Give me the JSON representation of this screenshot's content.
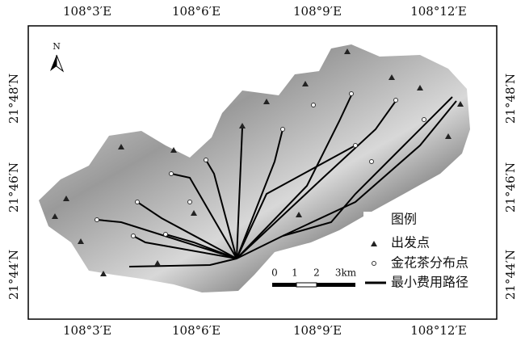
{
  "map": {
    "top_labels": [
      "108°3′E",
      "108°6′E",
      "108°9′E",
      "108°12′E"
    ],
    "bottom_labels": [
      "108°3′E",
      "108°6′E",
      "108°9′E",
      "108°12′E"
    ],
    "left_labels": [
      "21°48′N",
      "21°46′N",
      "21°44′N"
    ],
    "right_labels": [
      "21°48′N",
      "21°46′N",
      "21°44′N"
    ],
    "north": "N",
    "scale_labels": [
      "0",
      "1",
      "2",
      "3km"
    ],
    "legend": {
      "title": "图例",
      "items": [
        "出发点",
        "金花茶分布点",
        "最小费用路径"
      ]
    }
  }
}
